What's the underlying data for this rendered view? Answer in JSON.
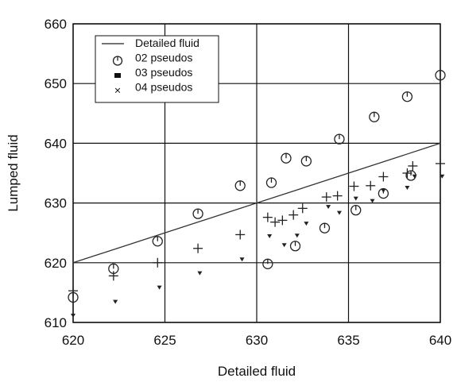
{
  "chart_data": {
    "type": "scatter",
    "title": "",
    "xlabel": "Detailed fluid",
    "ylabel": "Lumped fluid",
    "xlim": [
      620,
      640
    ],
    "ylim": [
      610,
      660
    ],
    "xticks": [
      620,
      625,
      630,
      635,
      640
    ],
    "yticks": [
      610,
      620,
      630,
      640,
      650,
      660
    ],
    "grid": true,
    "legend_position": "top-left",
    "series": [
      {
        "name": "Detailed fluid",
        "kind": "line",
        "marker": "none",
        "points": [
          [
            620,
            620
          ],
          [
            640,
            640
          ]
        ]
      },
      {
        "name": "02 pseudos",
        "kind": "scatter",
        "marker": "circle",
        "points": [
          [
            620.0,
            614.2
          ],
          [
            622.2,
            619.0
          ],
          [
            624.6,
            623.6
          ],
          [
            626.8,
            628.2
          ],
          [
            629.1,
            632.9
          ],
          [
            630.6,
            619.8
          ],
          [
            630.8,
            633.4
          ],
          [
            631.6,
            637.5
          ],
          [
            632.1,
            622.8
          ],
          [
            632.7,
            637.0
          ],
          [
            633.7,
            625.8
          ],
          [
            634.5,
            640.7
          ],
          [
            635.4,
            628.8
          ],
          [
            636.4,
            644.4
          ],
          [
            636.9,
            631.6
          ],
          [
            638.2,
            647.8
          ],
          [
            638.4,
            634.6
          ],
          [
            640.0,
            651.4
          ]
        ]
      },
      {
        "name": "03 pseudos",
        "kind": "scatter",
        "marker": "filled-square",
        "points": [
          [
            620.0,
            615.3
          ],
          [
            622.2,
            617.8
          ],
          [
            624.6,
            620.0
          ],
          [
            626.8,
            622.4
          ],
          [
            629.1,
            624.7
          ],
          [
            630.6,
            627.6
          ],
          [
            631.0,
            626.8
          ],
          [
            631.4,
            627.1
          ],
          [
            632.0,
            628.0
          ],
          [
            632.5,
            629.1
          ],
          [
            633.8,
            631.0
          ],
          [
            634.4,
            631.2
          ],
          [
            635.3,
            632.8
          ],
          [
            636.2,
            632.9
          ],
          [
            636.9,
            634.4
          ],
          [
            638.2,
            635.0
          ],
          [
            638.5,
            636.2
          ],
          [
            640.0,
            636.6
          ]
        ]
      },
      {
        "name": "04 pseudos",
        "kind": "scatter",
        "marker": "x",
        "points": [
          [
            620.0,
            611.2
          ],
          [
            622.3,
            613.5
          ],
          [
            624.7,
            615.9
          ],
          [
            626.9,
            618.3
          ],
          [
            629.2,
            620.6
          ],
          [
            630.7,
            624.5
          ],
          [
            631.5,
            623.0
          ],
          [
            632.2,
            624.6
          ],
          [
            632.7,
            626.6
          ],
          [
            633.9,
            629.4
          ],
          [
            634.5,
            628.4
          ],
          [
            635.4,
            630.8
          ],
          [
            636.3,
            630.4
          ],
          [
            636.9,
            632.1
          ],
          [
            638.2,
            632.6
          ],
          [
            638.6,
            634.5
          ],
          [
            640.1,
            634.5
          ]
        ]
      }
    ]
  }
}
